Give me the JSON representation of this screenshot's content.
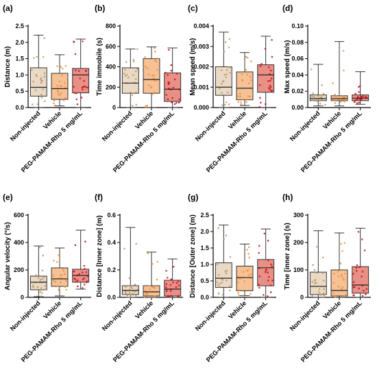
{
  "colors": {
    "box": [
      "#ead9c4",
      "#f6c194",
      "#e88f86"
    ],
    "dots": [
      "#b89a6e",
      "#e7924a",
      "#c8101e"
    ],
    "axis": "#000000"
  },
  "categories": [
    "Non-injected",
    "Vehicle",
    "PEG-PAMAM-Rho 5 mg/mL"
  ],
  "chart_data": [
    {
      "type": "box",
      "panel": "(a)",
      "ylabel": "Distance (m)",
      "ylim": [
        0,
        2.5
      ],
      "yticks": [
        "0.0",
        "0.5",
        "1.0",
        "1.5",
        "2.0",
        "2.5"
      ],
      "ytick_values": [
        0,
        0.5,
        1.0,
        1.5,
        2.0,
        2.5
      ],
      "boxes": [
        {
          "min": 0.0,
          "q1": 0.35,
          "median": 0.62,
          "q3": 1.22,
          "max": 2.22
        },
        {
          "min": 0.05,
          "q1": 0.25,
          "median": 0.58,
          "q3": 1.05,
          "max": 1.62
        },
        {
          "min": 0.0,
          "q1": 0.45,
          "median": 1.0,
          "q3": 1.2,
          "max": 2.1
        }
      ]
    },
    {
      "type": "box",
      "panel": "(b)",
      "ylabel": "Time immobile (s)",
      "ylim": [
        0,
        800
      ],
      "yticks": [
        "0",
        "200",
        "400",
        "600",
        "800"
      ],
      "ytick_values": [
        0,
        200,
        400,
        600,
        800
      ],
      "boxes": [
        {
          "min": 0,
          "q1": 140,
          "median": 240,
          "q3": 390,
          "max": 575
        },
        {
          "min": 0,
          "q1": 140,
          "median": 275,
          "q3": 480,
          "max": 595
        },
        {
          "min": 0,
          "q1": 60,
          "median": 180,
          "q3": 340,
          "max": 585
        }
      ]
    },
    {
      "type": "box",
      "panel": "(c)",
      "ylabel": "Mean speed (m/s)",
      "ylim": [
        0,
        0.004
      ],
      "yticks": [
        "0.000",
        "0.001",
        "0.002",
        "0.003",
        "0.004"
      ],
      "ytick_values": [
        0,
        0.001,
        0.002,
        0.003,
        0.004
      ],
      "boxes": [
        {
          "min": 0.0,
          "q1": 0.0006,
          "median": 0.001,
          "q3": 0.002,
          "max": 0.0037
        },
        {
          "min": 0.0001,
          "q1": 0.00038,
          "median": 0.00095,
          "q3": 0.00175,
          "max": 0.0027
        },
        {
          "min": 0.0,
          "q1": 0.00075,
          "median": 0.0016,
          "q3": 0.0021,
          "max": 0.0035
        }
      ]
    },
    {
      "type": "box",
      "panel": "(d)",
      "ylabel": "Max speed (m/s)",
      "ylim": [
        0,
        0.1
      ],
      "yticks": [
        "0.00",
        "0.02",
        "0.04",
        "0.06",
        "0.08",
        "0.10"
      ],
      "ytick_values": [
        0,
        0.02,
        0.04,
        0.06,
        0.08,
        0.1
      ],
      "boxes": [
        {
          "min": 0.002,
          "q1": 0.0085,
          "median": 0.011,
          "q3": 0.0155,
          "max": 0.053
        },
        {
          "min": 0.002,
          "q1": 0.0085,
          "median": 0.011,
          "q3": 0.0145,
          "max": 0.081
        },
        {
          "min": 0.004,
          "q1": 0.0085,
          "median": 0.0115,
          "q3": 0.0155,
          "max": 0.044
        }
      ]
    },
    {
      "type": "box",
      "panel": "(e)",
      "ylabel": "Angular velocity (°/s)",
      "ylim": [
        0,
        600
      ],
      "yticks": [
        "0",
        "200",
        "400",
        "600"
      ],
      "ytick_values": [
        0,
        200,
        400,
        600
      ],
      "boxes": [
        {
          "min": 5,
          "q1": 55,
          "median": 110,
          "q3": 155,
          "max": 375
        },
        {
          "min": 10,
          "q1": 80,
          "median": 135,
          "q3": 215,
          "max": 360
        },
        {
          "min": 60,
          "q1": 110,
          "median": 160,
          "q3": 205,
          "max": 490
        }
      ]
    },
    {
      "type": "box",
      "panel": "(f)",
      "ylabel": "Distance [Inner zone] (m)",
      "ylim": [
        0,
        0.6
      ],
      "yticks": [
        "0.0",
        "0.2",
        "0.4",
        "0.6"
      ],
      "ytick_values": [
        0,
        0.2,
        0.4,
        0.6
      ],
      "boxes": [
        {
          "min": 0.0,
          "q1": 0.02,
          "median": 0.05,
          "q3": 0.085,
          "max": 0.51
        },
        {
          "min": 0.0,
          "q1": 0.01,
          "median": 0.04,
          "q3": 0.085,
          "max": 0.33
        },
        {
          "min": 0.0,
          "q1": 0.01,
          "median": 0.06,
          "q3": 0.125,
          "max": 0.28
        }
      ]
    },
    {
      "type": "box",
      "panel": "(g)",
      "ylabel": "Distance [Outer zone] (m)",
      "ylim": [
        0,
        2.5
      ],
      "yticks": [
        "0.0",
        "0.5",
        "1.0",
        "1.5",
        "2.0",
        "2.5"
      ],
      "ytick_values": [
        0,
        0.5,
        1.0,
        1.5,
        2.0,
        2.5
      ],
      "boxes": [
        {
          "min": 0.0,
          "q1": 0.3,
          "median": 0.58,
          "q3": 1.05,
          "max": 2.2
        },
        {
          "min": 0.05,
          "q1": 0.2,
          "median": 0.6,
          "q3": 0.95,
          "max": 1.62
        },
        {
          "min": 0.0,
          "q1": 0.35,
          "median": 0.9,
          "q3": 1.15,
          "max": 2.08
        }
      ]
    },
    {
      "type": "box",
      "panel": "(h)",
      "ylabel": "Time [inner zone] (s)",
      "ylim": [
        0,
        300
      ],
      "yticks": [
        "0",
        "100",
        "200",
        "300"
      ],
      "ytick_values": [
        0,
        100,
        200,
        300
      ],
      "boxes": [
        {
          "min": 0,
          "q1": 10,
          "median": 40,
          "q3": 92,
          "max": 243
        },
        {
          "min": 0,
          "q1": 5,
          "median": 25,
          "q3": 100,
          "max": 235
        },
        {
          "min": 0,
          "q1": 15,
          "median": 45,
          "q3": 112,
          "max": 252
        }
      ]
    }
  ]
}
